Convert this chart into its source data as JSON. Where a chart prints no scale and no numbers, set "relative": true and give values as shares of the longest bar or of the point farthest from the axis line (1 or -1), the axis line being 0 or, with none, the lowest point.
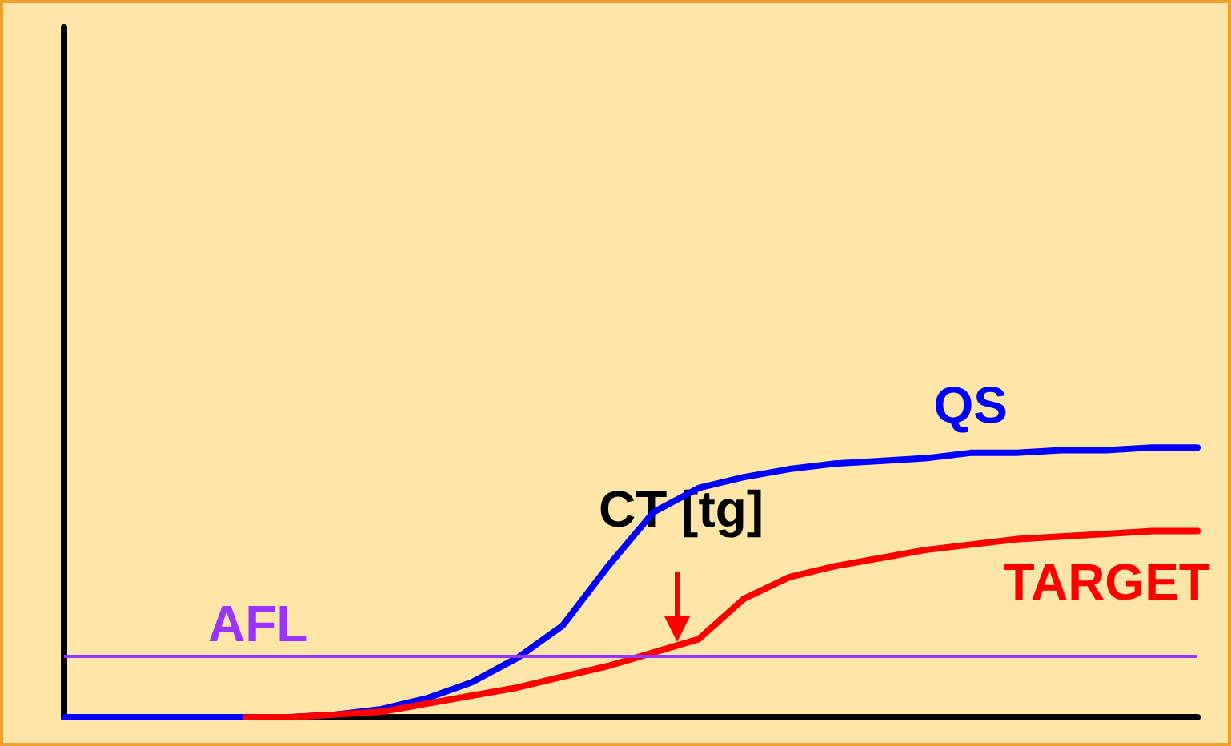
{
  "chart_data": {
    "type": "line",
    "relative": true,
    "categories": [
      null,
      null,
      null,
      null,
      null,
      null,
      null,
      null,
      null,
      null,
      null,
      null,
      null,
      null,
      null,
      null,
      null,
      null,
      null,
      null,
      null,
      null,
      null,
      null,
      null,
      null
    ],
    "series": [
      {
        "name": "QS",
        "color": "#0000ff",
        "values": [
          0,
          0,
          0,
          0,
          0,
          0,
          0.01,
          0.03,
          0.07,
          0.13,
          0.22,
          0.34,
          0.56,
          0.76,
          0.85,
          0.89,
          0.92,
          0.94,
          0.95,
          0.96,
          0.98,
          0.98,
          0.99,
          0.99,
          1,
          1
        ]
      },
      {
        "name": "TARGET",
        "color": "#ff0000",
        "values": [
          null,
          null,
          null,
          null,
          0,
          0,
          0.01,
          0.02,
          0.05,
          0.08,
          0.11,
          0.15,
          0.19,
          0.24,
          0.29,
          0.44,
          0.52,
          0.56,
          0.59,
          0.62,
          0.64,
          0.66,
          0.67,
          0.68,
          0.69,
          0.69
        ]
      }
    ],
    "ref_lines": [
      {
        "axis": "y",
        "value": 0.225,
        "label": "AFL",
        "color": "#9933ff",
        "line_style": "solid"
      }
    ],
    "annotations": [
      "CT [tg]"
    ],
    "grid": false,
    "legend": false,
    "marker": "none",
    "line_style": "solid"
  }
}
